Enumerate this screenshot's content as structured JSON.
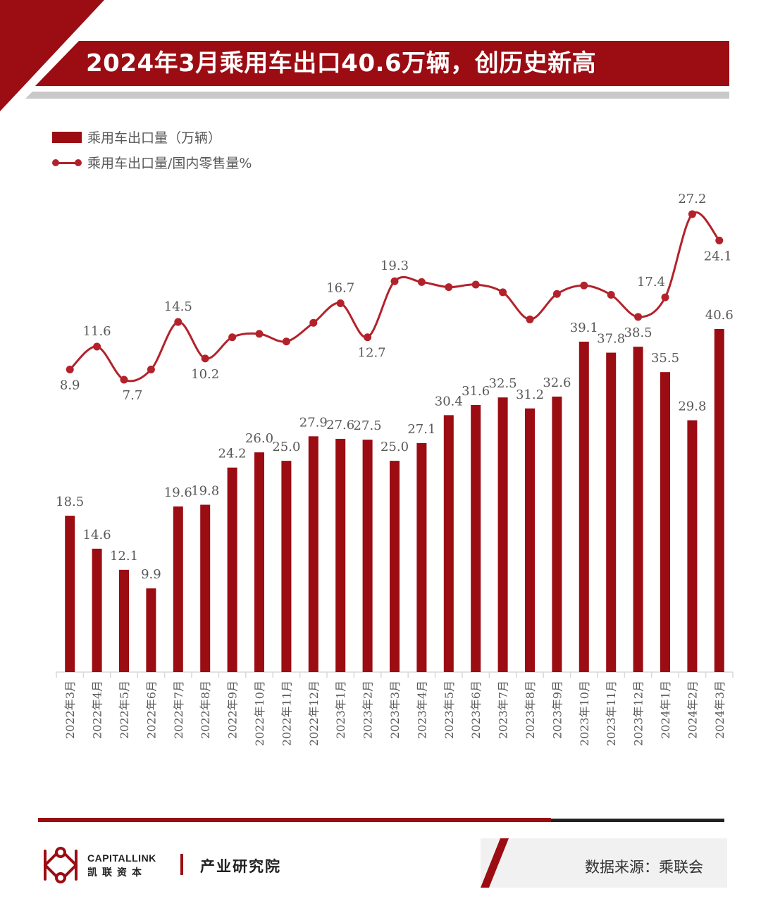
{
  "header": {
    "title": "2024年3月乘用车出口40.6万辆，创历史新高"
  },
  "chart_data": {
    "type": "bar",
    "categories": [
      "2022年3月",
      "2022年4月",
      "2022年5月",
      "2022年6月",
      "2022年7月",
      "2022年8月",
      "2022年9月",
      "2022年10月",
      "2022年11月",
      "2022年12月",
      "2023年1月",
      "2023年2月",
      "2023年3月",
      "2023年4月",
      "2023年5月",
      "2023年6月",
      "2023年7月",
      "2023年8月",
      "2023年9月",
      "2023年10月",
      "2023年11月",
      "2023年12月",
      "2024年1月",
      "2024年2月",
      "2024年3月"
    ],
    "series": [
      {
        "name": "乘用车出口量（万辆）",
        "type": "bar",
        "values": [
          18.5,
          14.6,
          12.1,
          9.9,
          19.6,
          19.8,
          24.2,
          26.0,
          25.0,
          27.9,
          27.6,
          27.5,
          25.0,
          27.1,
          30.4,
          31.6,
          32.5,
          31.2,
          32.6,
          39.1,
          37.8,
          38.5,
          35.5,
          29.8,
          40.6
        ]
      },
      {
        "name": "乘用车出口量/国内零售量%",
        "type": "line",
        "values": [
          8.9,
          11.6,
          7.7,
          8.9,
          14.5,
          10.2,
          12.7,
          13.1,
          12.2,
          14.4,
          16.7,
          12.7,
          19.3,
          19.2,
          18.6,
          18.9,
          18.0,
          14.8,
          17.8,
          18.8,
          17.7,
          15.1,
          17.4,
          27.2,
          24.1
        ],
        "labels": [
          "8.9",
          "11.6",
          "7.7",
          "",
          "14.5",
          "10.2",
          "",
          "",
          "",
          "",
          "16.7",
          "12.7",
          "19.3",
          "",
          "",
          "",
          "",
          "",
          "",
          "",
          "",
          "",
          "17.4",
          "27.2",
          "24.1"
        ]
      }
    ],
    "bar_labels": [
      "18.5",
      "14.6",
      "12.1",
      "9.9",
      "19.6",
      "19.8",
      "24.2",
      "26.0",
      "25.0",
      "27.9",
      "27.6",
      "27.5",
      "25.0",
      "27.1",
      "30.4",
      "31.6",
      "32.5",
      "31.2",
      "32.6",
      "39.1",
      "37.8",
      "38.5",
      "35.5",
      "29.8",
      "40.6"
    ],
    "legend": {
      "position": "top-left"
    },
    "colors": {
      "bar": "#9b0c13",
      "line": "#b3222b",
      "label": "#595959",
      "axis": "#d9d9d9"
    },
    "grid": false
  },
  "footer": {
    "brand_en": "CAPITALLINK",
    "brand_cn": "凯联资本",
    "institute": "产业研究院",
    "source": "数据来源：乘联会"
  }
}
